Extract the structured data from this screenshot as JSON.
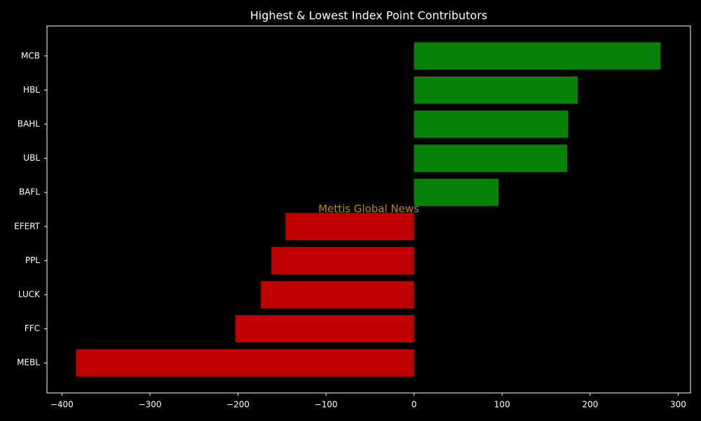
{
  "chart_data": {
    "type": "barh",
    "title": "Highest & Lowest Index Point Contributors",
    "categories": [
      "MCB",
      "HBL",
      "BAHL",
      "UBL",
      "BAFL",
      "EFERT",
      "PPL",
      "LUCK",
      "FFC",
      "MEBL"
    ],
    "values": [
      280,
      186,
      175,
      174,
      96,
      -146,
      -162,
      -174,
      -203,
      -384
    ],
    "colors": [
      "#088208",
      "#088208",
      "#088208",
      "#088208",
      "#088208",
      "#c00000",
      "#c00000",
      "#c00000",
      "#c00000",
      "#c00000"
    ],
    "xlim": [
      -417,
      314
    ],
    "xticks": [
      {
        "value": -400,
        "label": "−400"
      },
      {
        "value": -300,
        "label": "−300"
      },
      {
        "value": -200,
        "label": "−200"
      },
      {
        "value": -100,
        "label": "−100"
      },
      0,
      100,
      200,
      300
    ],
    "annotation": "Mettis Global News",
    "annotation_color": "#b8860b"
  }
}
